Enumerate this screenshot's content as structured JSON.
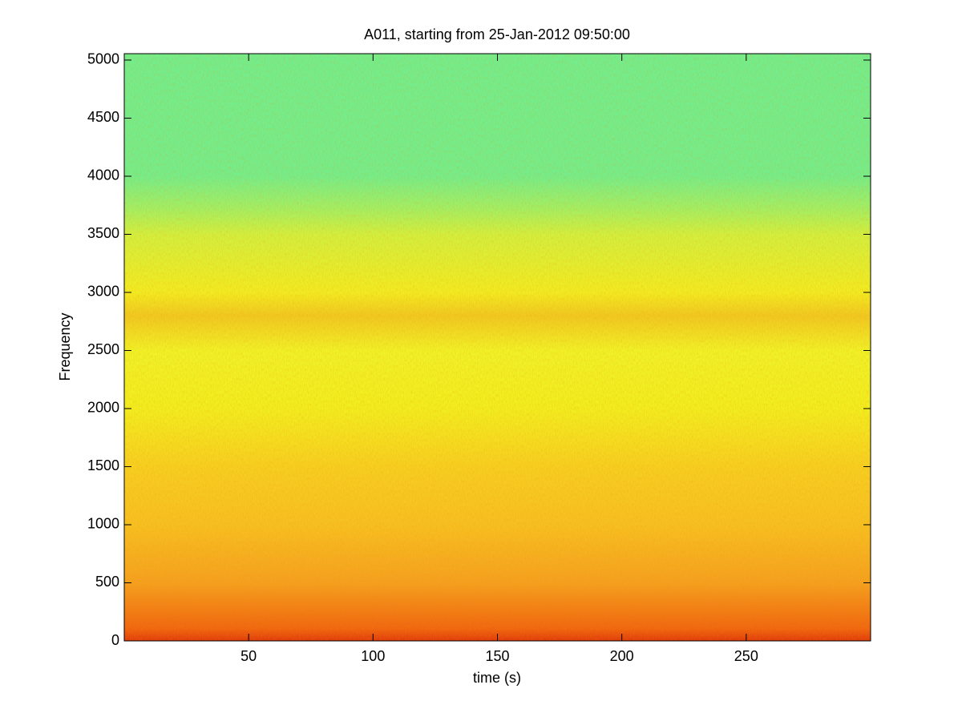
{
  "chart_data": {
    "type": "spectrogram",
    "title": "A011, starting from 25-Jan-2012 09:50:00",
    "xlabel": "time (s)",
    "ylabel": "Frequency",
    "xlim": [
      0,
      300
    ],
    "ylim": [
      0,
      5055
    ],
    "xticks": [
      50,
      100,
      150,
      200,
      250
    ],
    "yticks": [
      0,
      500,
      1000,
      1500,
      2000,
      2500,
      3000,
      3500,
      4000,
      4500,
      5000
    ],
    "y": [
      0,
      100,
      500,
      1000,
      1500,
      2000,
      2500,
      2800,
      3000,
      3500,
      3700,
      4000,
      5055
    ],
    "colors": [
      "#e0380c",
      "#f06410",
      "#f5a020",
      "#f7c022",
      "#f7cf22",
      "#f2ee20",
      "#f0f228",
      "#f0c822",
      "#f2ec22",
      "#d2f040",
      "#a6f062",
      "#74ee8c",
      "#72ee8e"
    ]
  }
}
